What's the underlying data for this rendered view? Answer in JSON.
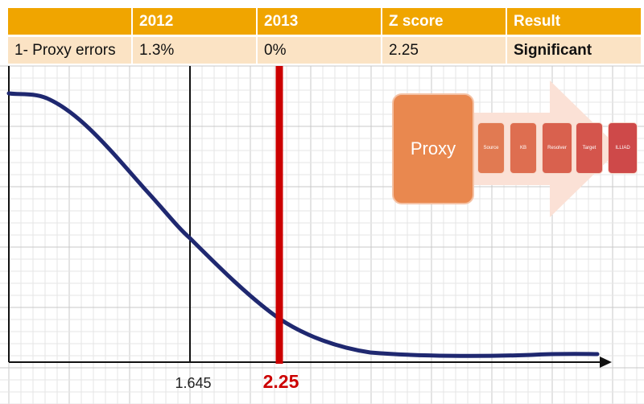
{
  "table": {
    "headers": [
      "",
      "2012",
      "2013",
      "Z score",
      "Result"
    ],
    "row": {
      "label": "1- Proxy errors",
      "y2012": "1.3%",
      "y2013": "0%",
      "zscore": "2.25",
      "result": "Significant"
    }
  },
  "chart_data": {
    "type": "line",
    "x_tick_labels": [
      "1.645",
      "2.25"
    ],
    "critical_value": 1.645,
    "z_score": 2.25,
    "colors": {
      "curve": "#1f2870",
      "z_line": "#cc0000",
      "grid": "#dcdcdc",
      "axis": "#111111"
    }
  },
  "diagram": {
    "main_label": "Proxy",
    "steps": [
      {
        "label": "Source",
        "color": "#e17a52"
      },
      {
        "label": "KB",
        "color": "#de6e50"
      },
      {
        "label": "Resolver",
        "color": "#d9614e"
      },
      {
        "label": "Target",
        "color": "#d4554c"
      },
      {
        "label": "ILLIAD",
        "color": "#ce4949"
      }
    ],
    "colors": {
      "proxy": "#e9884f",
      "arrow": "#fbe1d6"
    }
  }
}
